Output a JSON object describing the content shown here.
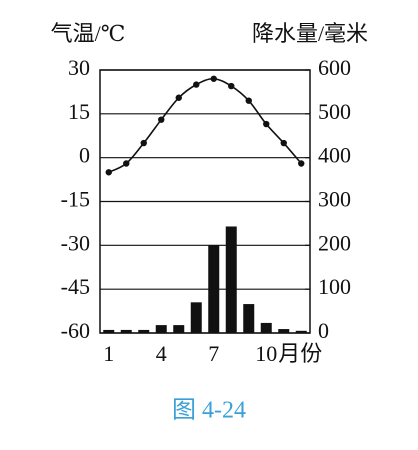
{
  "chart_data": {
    "type": "combo",
    "y_label": "气温/℃",
    "y2_label": "降水量/毫米",
    "x_label": "月份",
    "caption": "图 4-24",
    "categories": [
      "1",
      null,
      null,
      "4",
      null,
      null,
      "7",
      null,
      null,
      "10",
      null,
      null
    ],
    "series": [
      {
        "type": "bar",
        "axis": "y2",
        "color": "#111111",
        "values": [
          7,
          7,
          7,
          18,
          18,
          70,
          200,
          243,
          66,
          23,
          9,
          5
        ]
      },
      {
        "type": "line",
        "axis": "y",
        "color": "#111111",
        "values": [
          -5,
          -2,
          5,
          13,
          20.5,
          25,
          27,
          24.5,
          19.5,
          11.5,
          5,
          -2
        ]
      }
    ],
    "ylim": [
      -60,
      30
    ],
    "yticks": [
      -60,
      -45,
      -30,
      -15,
      0,
      15,
      30
    ],
    "y2lim": [
      0,
      600
    ],
    "y2ticks": [
      0,
      100,
      200,
      300,
      400,
      500,
      600
    ],
    "grid": true,
    "caption_color": "#3aa0d8"
  }
}
